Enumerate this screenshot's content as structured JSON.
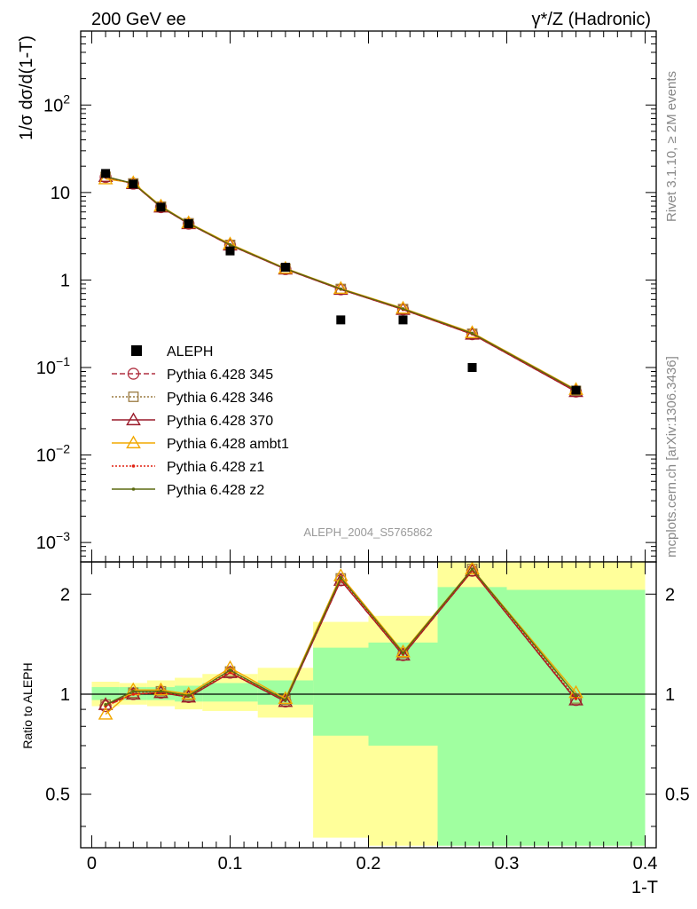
{
  "header": {
    "left_title": "200 GeV ee",
    "right_title": "γ*/Z (Hadronic)"
  },
  "side_labels": {
    "rivet": "Rivet 3.1.10, ≥ 2M events",
    "mcplots": "mcplots.cern.ch [arXiv:1306.3436]"
  },
  "colors": {
    "data": "#000000",
    "p345": "#b03040",
    "p346": "#9a7a40",
    "p370": "#9a1a2a",
    "ambt1": "#f2a800",
    "z1": "#e02010",
    "z2": "#5c6a10",
    "band_stat": "#a0ffa0",
    "band_total": "#ffff9a"
  },
  "chart_data": [
    {
      "type": "scatter",
      "scale": "log",
      "ylabel": "1/σ  dσ/d(1-T)",
      "ylim": [
        0.0006,
        700
      ],
      "xlim": [
        -0.008,
        0.408
      ],
      "y_ticks": [
        {
          "value": 100,
          "base": "10",
          "exp": "2"
        },
        {
          "value": 10,
          "base": "10",
          "exp": ""
        },
        {
          "value": 1,
          "base": "1",
          "exp": ""
        },
        {
          "value": 0.1,
          "base": "10",
          "exp": "−1"
        },
        {
          "value": 0.01,
          "base": "10",
          "exp": "−2"
        },
        {
          "value": 0.001,
          "base": "10",
          "exp": "−3"
        }
      ],
      "annotation": "ALEPH_2004_S5765862",
      "x": [
        0.01,
        0.03,
        0.05,
        0.07,
        0.1,
        0.14,
        0.18,
        0.225,
        0.275,
        0.35
      ],
      "data_series": {
        "name": "ALEPH",
        "values": [
          16.5,
          12.5,
          6.8,
          4.4,
          2.15,
          1.4,
          0.35,
          0.35,
          0.1,
          0.055
        ]
      },
      "series": [
        {
          "key": "p345",
          "name": "Pythia 6.428 345",
          "marker": "circle",
          "dash": "6,3",
          "values": [
            15.0,
            12.6,
            6.8,
            4.4,
            2.5,
            1.33,
            0.78,
            0.46,
            0.24,
            0.053
          ]
        },
        {
          "key": "p346",
          "name": "Pythia 6.428 346",
          "marker": "square",
          "dash": "2,2",
          "values": [
            15.1,
            12.7,
            6.9,
            4.45,
            2.52,
            1.35,
            0.79,
            0.465,
            0.243,
            0.054
          ]
        },
        {
          "key": "p370",
          "name": "Pythia 6.428 370",
          "marker": "triangle",
          "dash": "",
          "values": [
            15.2,
            12.6,
            6.8,
            4.4,
            2.5,
            1.33,
            0.78,
            0.46,
            0.24,
            0.053
          ]
        },
        {
          "key": "ambt1",
          "name": "Pythia 6.428 ambt1",
          "marker": "triangle",
          "dash": "",
          "values": [
            14.3,
            12.9,
            7.0,
            4.5,
            2.58,
            1.36,
            0.8,
            0.475,
            0.25,
            0.056
          ]
        },
        {
          "key": "z1",
          "name": "Pythia 6.428 z1",
          "marker": "dot",
          "dash": "2,2",
          "values": [
            15.0,
            12.6,
            6.8,
            4.42,
            2.5,
            1.34,
            0.785,
            0.46,
            0.242,
            0.054
          ]
        },
        {
          "key": "z2",
          "name": "Pythia 6.428 z2",
          "marker": "dot",
          "dash": "",
          "values": [
            15.2,
            12.7,
            6.9,
            4.45,
            2.53,
            1.35,
            0.79,
            0.468,
            0.246,
            0.055
          ]
        }
      ]
    },
    {
      "type": "line",
      "scale": "log",
      "ylabel": "Ratio to ALEPH",
      "xlabel": "1-T",
      "ylim": [
        0.345,
        2.5
      ],
      "xlim": [
        -0.008,
        0.408
      ],
      "y_ticks": [
        {
          "value": 2,
          "label": "2"
        },
        {
          "value": 1,
          "label": "1"
        },
        {
          "value": 0.5,
          "label": "0.5"
        }
      ],
      "x_ticks": [
        {
          "value": 0,
          "label": "0"
        },
        {
          "value": 0.1,
          "label": "0.1"
        },
        {
          "value": 0.2,
          "label": "0.2"
        },
        {
          "value": 0.3,
          "label": "0.3"
        },
        {
          "value": 0.4,
          "label": "0.4"
        }
      ],
      "bins": [
        {
          "lo": 0.0,
          "hi": 0.02,
          "stat": [
            0.96,
            1.05
          ],
          "total": [
            0.92,
            1.09
          ]
        },
        {
          "lo": 0.02,
          "hi": 0.04,
          "stat": [
            0.96,
            1.05
          ],
          "total": [
            0.93,
            1.08
          ]
        },
        {
          "lo": 0.04,
          "hi": 0.06,
          "stat": [
            0.96,
            1.05
          ],
          "total": [
            0.92,
            1.1
          ]
        },
        {
          "lo": 0.06,
          "hi": 0.08,
          "stat": [
            0.95,
            1.06
          ],
          "total": [
            0.9,
            1.12
          ]
        },
        {
          "lo": 0.08,
          "hi": 0.12,
          "stat": [
            0.95,
            1.08
          ],
          "total": [
            0.89,
            1.15
          ]
        },
        {
          "lo": 0.12,
          "hi": 0.16,
          "stat": [
            0.93,
            1.1
          ],
          "total": [
            0.85,
            1.2
          ]
        },
        {
          "lo": 0.16,
          "hi": 0.2,
          "stat": [
            0.75,
            1.38
          ],
          "total": [
            0.37,
            1.65
          ]
        },
        {
          "lo": 0.2,
          "hi": 0.25,
          "stat": [
            0.7,
            1.43
          ],
          "total": [
            0.35,
            1.72
          ]
        },
        {
          "lo": 0.25,
          "hi": 0.3,
          "stat": [
            0.35,
            2.1
          ],
          "total": [
            0.35,
            2.6
          ]
        },
        {
          "lo": 0.3,
          "hi": 0.4,
          "stat": [
            0.35,
            2.06
          ],
          "total": [
            0.35,
            2.6
          ]
        }
      ],
      "ratio_series": [
        {
          "key": "p345",
          "values": [
            0.92,
            1.0,
            1.01,
            0.98,
            1.16,
            0.95,
            2.2,
            1.31,
            2.35,
            0.96
          ]
        },
        {
          "key": "p346",
          "values": [
            0.93,
            1.01,
            1.02,
            0.99,
            1.17,
            0.96,
            2.23,
            1.33,
            2.38,
            0.97
          ]
        },
        {
          "key": "p370",
          "values": [
            0.93,
            1.0,
            1.01,
            0.98,
            1.16,
            0.95,
            2.2,
            1.31,
            2.35,
            0.96
          ]
        },
        {
          "key": "ambt1",
          "values": [
            0.87,
            1.03,
            1.03,
            1.0,
            1.2,
            0.97,
            2.27,
            1.34,
            2.38,
            1.01
          ]
        },
        {
          "key": "z1",
          "values": [
            0.92,
            1.0,
            1.01,
            0.99,
            1.16,
            0.96,
            2.21,
            1.32,
            2.36,
            0.97
          ]
        },
        {
          "key": "z2",
          "values": [
            0.93,
            1.02,
            1.02,
            0.99,
            1.18,
            0.96,
            2.24,
            1.33,
            2.38,
            0.99
          ]
        }
      ]
    }
  ]
}
